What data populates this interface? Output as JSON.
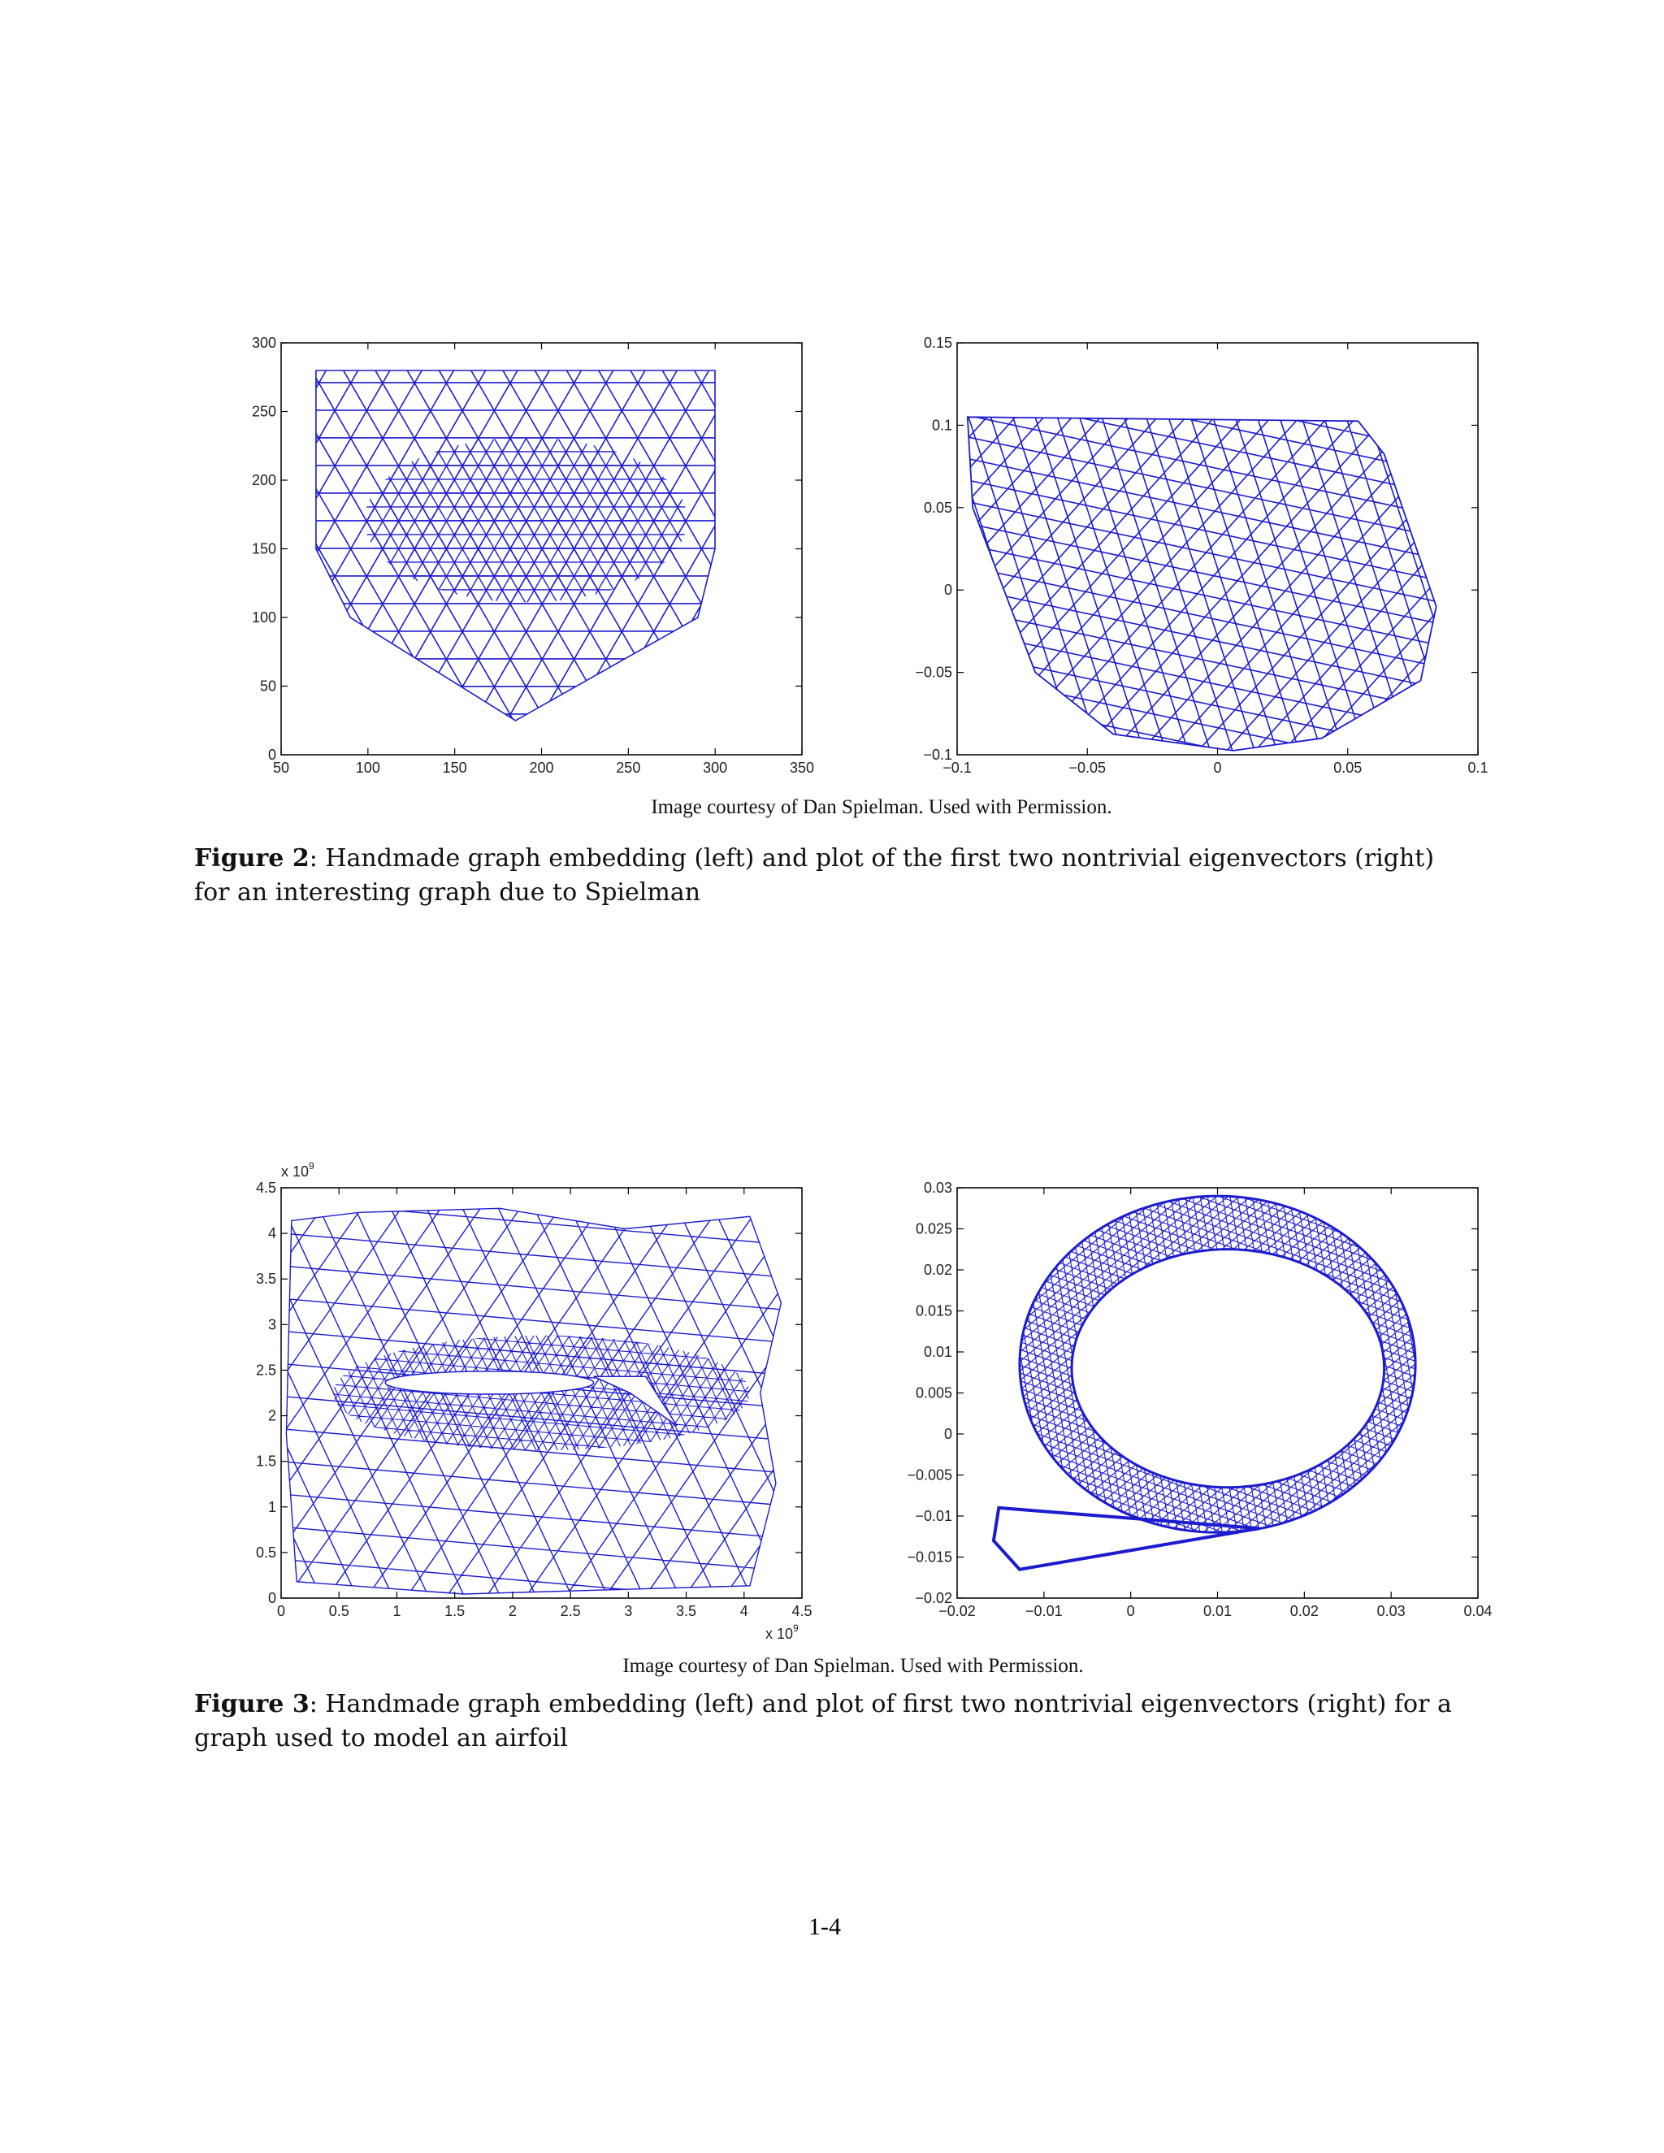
{
  "figures": [
    {
      "plots": [
        {
          "xticks": [
            "50",
            "100",
            "150",
            "200",
            "250",
            "300",
            "350"
          ],
          "yticks": [
            "0",
            "50",
            "100",
            "150",
            "200",
            "250",
            "300"
          ]
        },
        {
          "xticks": [
            "−0.1",
            "−0.05",
            "0",
            "0.05",
            "0.1"
          ],
          "yticks": [
            "−0.1",
            "−0.05",
            "0",
            "0.05",
            "0.1",
            "0.15"
          ]
        }
      ],
      "credit": "Image courtesy of Dan Spielman. Used with Permission.",
      "label": "Figure 2",
      "caption": ": Handmade graph embedding (left) and plot of the first two nontrivial eigenvectors (right) for an interesting graph due to Spielman"
    },
    {
      "plots": [
        {
          "xticks": [
            "0",
            "0.5",
            "1",
            "1.5",
            "2",
            "2.5",
            "3",
            "3.5",
            "4",
            "4.5"
          ],
          "yticks": [
            "0",
            "0.5",
            "1",
            "1.5",
            "2",
            "2.5",
            "3",
            "3.5",
            "4",
            "4.5"
          ],
          "x_multiplier": "x 10",
          "x_exponent": "9",
          "y_multiplier": "x 10",
          "y_exponent": "9"
        },
        {
          "xticks": [
            "−0.02",
            "−0.01",
            "0",
            "0.01",
            "0.02",
            "0.03",
            "0.04"
          ],
          "yticks": [
            "−0.02",
            "−0.015",
            "−0.01",
            "−0.005",
            "0",
            "0.005",
            "0.01",
            "0.015",
            "0.02",
            "0.025",
            "0.03"
          ]
        }
      ],
      "credit": "Image courtesy of Dan Spielman. Used with Permission.",
      "label": "Figure 3",
      "caption": ": Handmade graph embedding (left) and plot of first two nontrivial eigenvectors (right) for a graph used to model an airfoil"
    }
  ],
  "page_number": "1-4"
}
